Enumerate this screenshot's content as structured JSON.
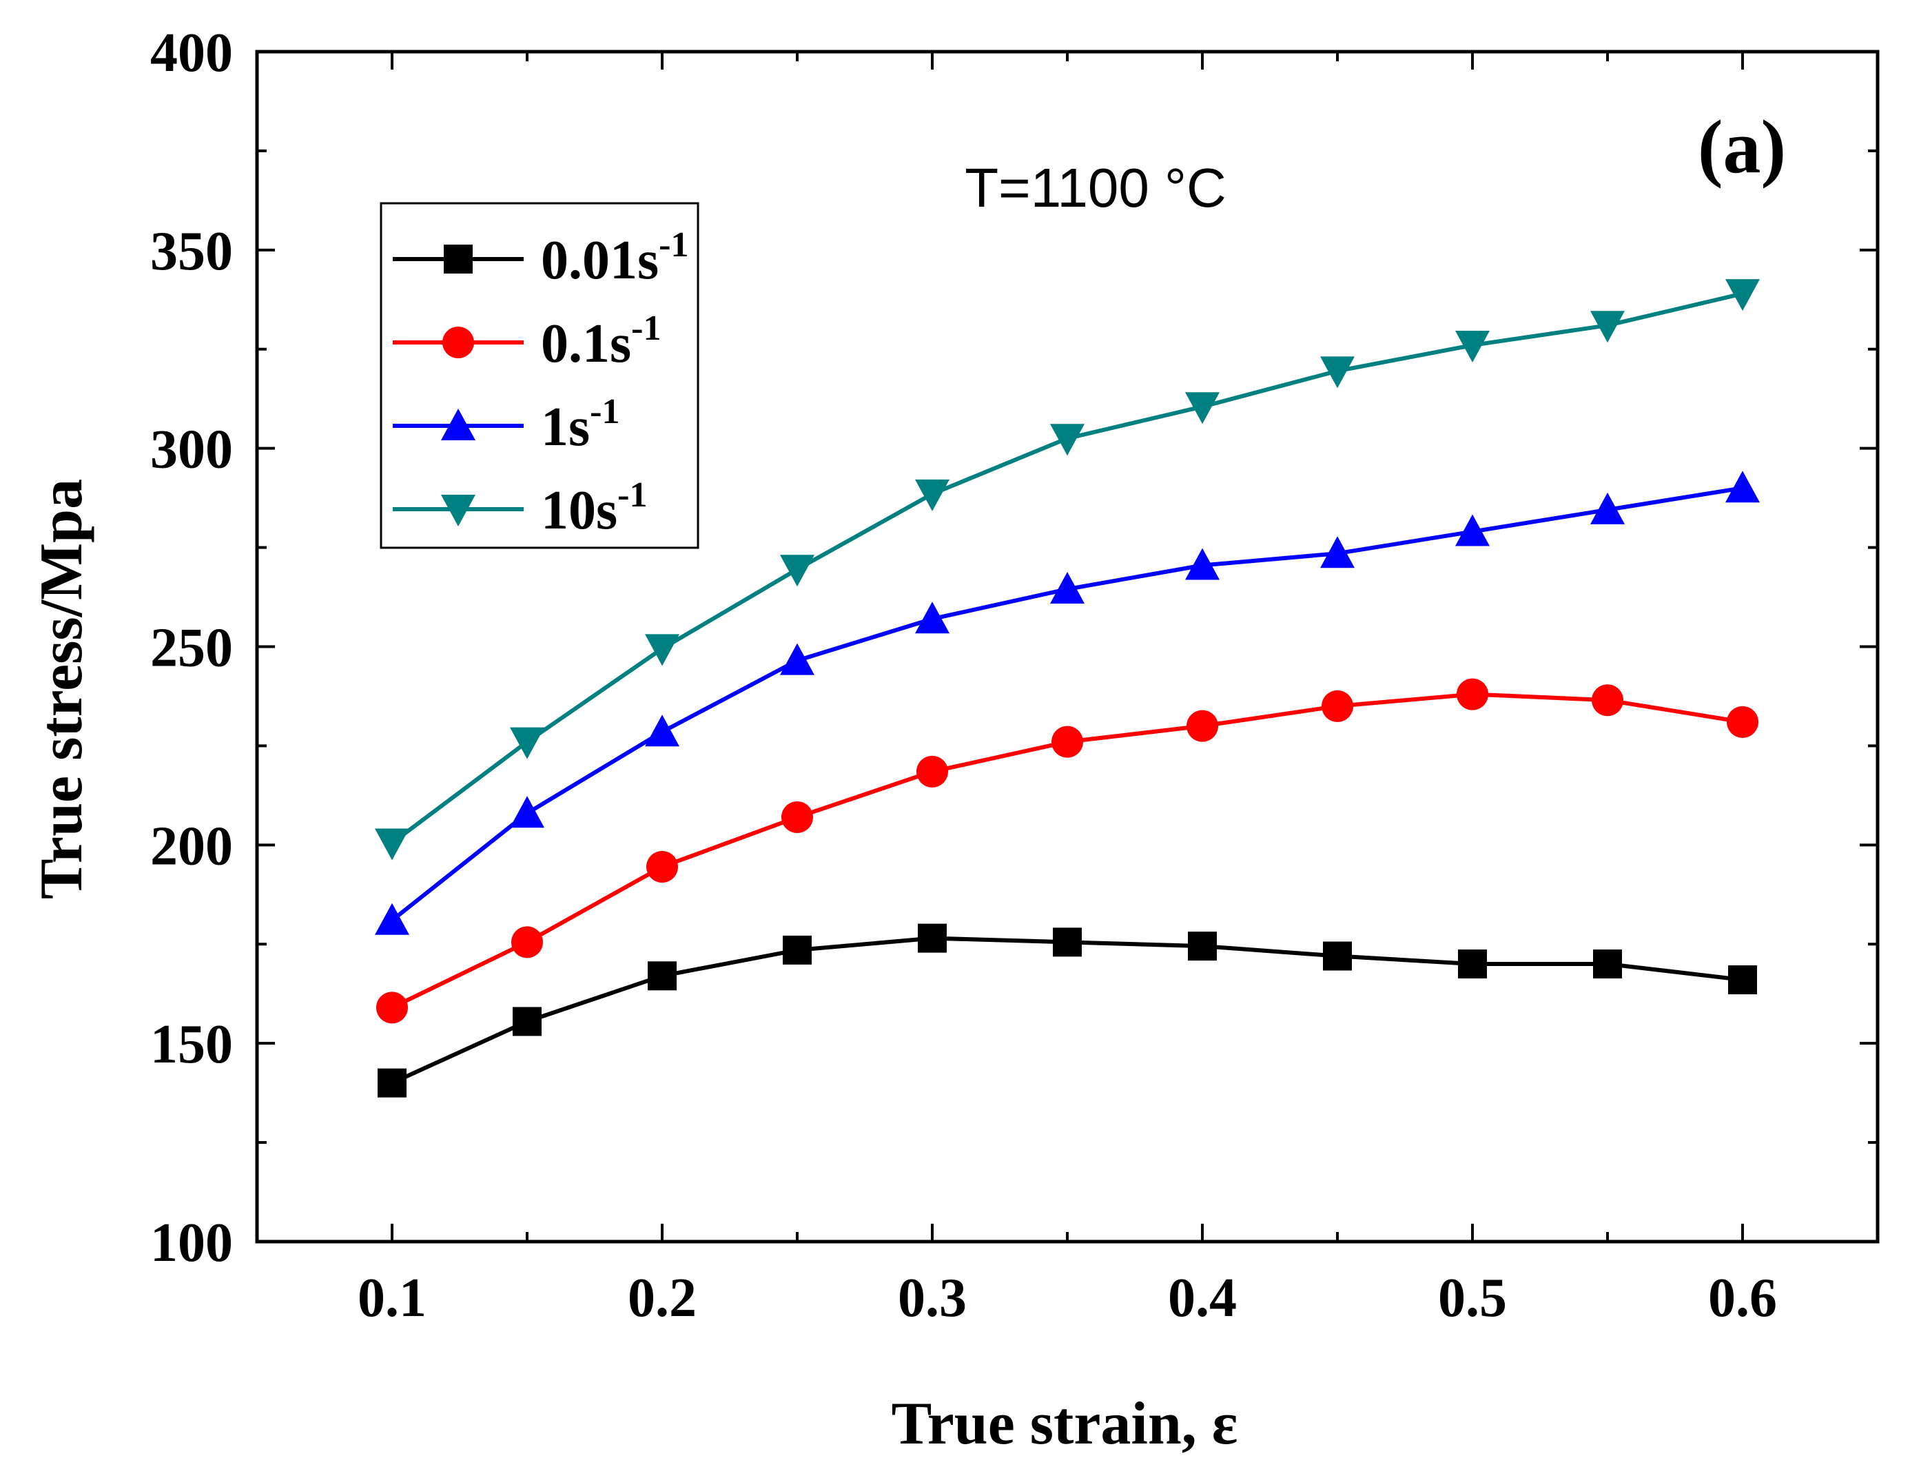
{
  "chart_data": {
    "type": "line",
    "xlabel": "True strain, ε",
    "ylabel": "True stress/Mpa",
    "xlim": [
      0.05,
      0.65
    ],
    "ylim": [
      100,
      400
    ],
    "x_ticks": [
      "0.1",
      "0.2",
      "0.3",
      "0.4",
      "0.5",
      "0.6"
    ],
    "x_tick_values": [
      0.1,
      0.2,
      0.3,
      0.4,
      0.5,
      0.6
    ],
    "y_ticks": [
      "100",
      "150",
      "200",
      "250",
      "300",
      "350",
      "400"
    ],
    "y_tick_values": [
      100,
      150,
      200,
      250,
      300,
      350,
      400
    ],
    "grid": false,
    "legend_position": "upper-left",
    "annotations": {
      "temperature": "T=1100 °C",
      "panel": "(a)"
    },
    "x": [
      0.1,
      0.15,
      0.2,
      0.25,
      0.3,
      0.35,
      0.4,
      0.45,
      0.5,
      0.55,
      0.6
    ],
    "series": [
      {
        "name": "0.01s",
        "superscript": "-1",
        "color": "#000000",
        "marker": "square",
        "values": [
          140,
          155.5,
          167,
          173.5,
          176.5,
          175.5,
          174.5,
          172,
          170,
          170,
          166
        ]
      },
      {
        "name": "0.1s",
        "superscript": "-1",
        "color": "#ff0000",
        "marker": "circle",
        "values": [
          159,
          175.5,
          194.5,
          207,
          218.5,
          226,
          230,
          235,
          238,
          236.5,
          231
        ]
      },
      {
        "name": "1s",
        "superscript": "-1",
        "color": "#0000ff",
        "marker": "triangle-up",
        "values": [
          181,
          208,
          228.5,
          246.5,
          257,
          264.5,
          270.5,
          273.5,
          279,
          284.5,
          290
        ]
      },
      {
        "name": "10s",
        "superscript": "-1",
        "color": "#008080",
        "marker": "triangle-down",
        "values": [
          200.5,
          226,
          249.5,
          269.5,
          288.5,
          302.5,
          310.5,
          319.5,
          326,
          331,
          339
        ]
      }
    ]
  }
}
